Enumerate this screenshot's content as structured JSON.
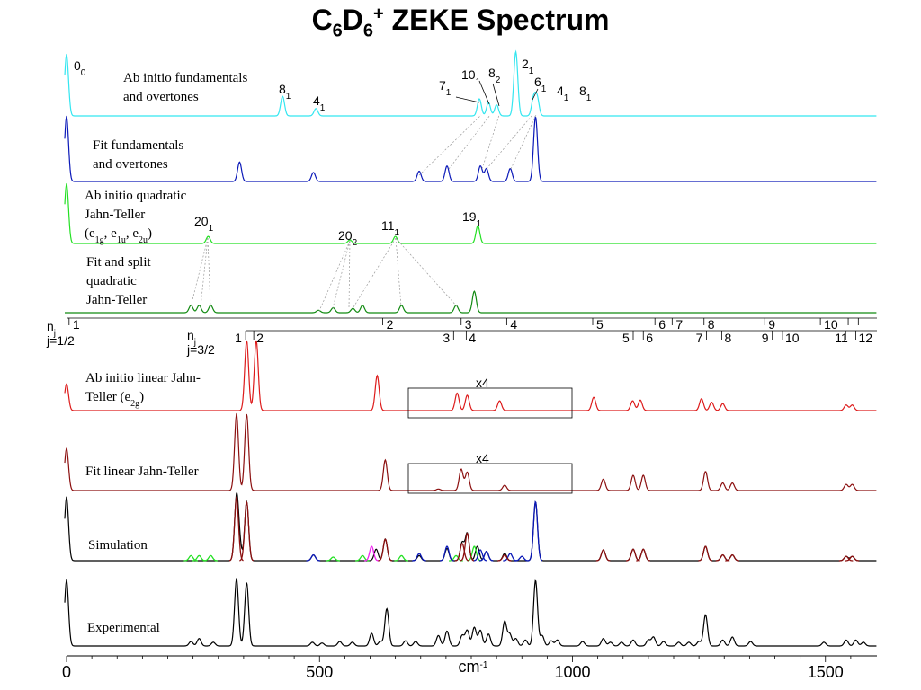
{
  "title": {
    "main": "C",
    "sub1": "6",
    "mid": "D",
    "sub2": "6",
    "sup": "+",
    "rest": " ZEKE Spectrum"
  },
  "colors": {
    "cyan": "#33e6f0",
    "blue": "#0a18b8",
    "green": "#23e023",
    "darkgreen": "#118a11",
    "red": "#dd1a1a",
    "darkred": "#8b0f0f",
    "black": "#000000",
    "magenta": "#ee22ee"
  },
  "chart_data": {
    "type": "line",
    "xlabel": "cm",
    "xlabel_sup": "-1",
    "xlim": [
      0,
      1600
    ],
    "xticks": [
      0,
      500,
      1000,
      1500
    ],
    "xtick_labels": [
      "0",
      "500",
      "1000",
      "1500"
    ],
    "series": [
      {
        "name": "Ab initio fundamentals and overtones",
        "label_lines": [
          "Ab initio fundamentals",
          "and overtones"
        ],
        "color": "#33e6f0",
        "peaks": [
          [
            0,
            1.0
          ],
          [
            427,
            0.32
          ],
          [
            493,
            0.12
          ],
          [
            816,
            0.28
          ],
          [
            834,
            0.22
          ],
          [
            850,
            0.18
          ],
          [
            888,
            1.05
          ],
          [
            923,
            0.28
          ],
          [
            930,
            0.3
          ]
        ],
        "annotations": [
          {
            "text": "0",
            "sub": "0",
            "x": 0
          },
          {
            "text": "8",
            "sub": "1",
            "x": 427
          },
          {
            "text": "4",
            "sub": "1",
            "x": 493
          },
          {
            "text": "7",
            "sub": "1",
            "x": 816
          },
          {
            "text": "10",
            "sub": "1",
            "x": 834
          },
          {
            "text": "8",
            "sub": "2",
            "x": 850
          },
          {
            "text": "2",
            "sub": "1",
            "x": 888
          },
          {
            "text": "6",
            "sub": "1",
            "x": 923
          },
          {
            "text": "4",
            "sub": "1",
            "x": 958
          },
          {
            "text": "8",
            "sub": "1",
            "x": 986
          }
        ]
      },
      {
        "name": "Fit fundamentals and overtones",
        "label_lines": [
          "Fit fundamentals",
          "and overtones"
        ],
        "color": "#0a18b8",
        "peaks": [
          [
            0,
            1.0
          ],
          [
            342,
            0.3
          ],
          [
            488,
            0.14
          ],
          [
            697,
            0.16
          ],
          [
            752,
            0.24
          ],
          [
            818,
            0.24
          ],
          [
            830,
            0.2
          ],
          [
            877,
            0.2
          ],
          [
            927,
            1.0
          ]
        ]
      },
      {
        "name": "Ab initio quadratic Jahn-Teller",
        "label_lines": [
          "Ab initio quadratic",
          "Jahn-Teller",
          "(e1g, e1u, e2u)"
        ],
        "color": "#23e023",
        "peaks": [
          [
            0,
            1.0
          ],
          [
            280,
            0.12
          ],
          [
            560,
            0.06
          ],
          [
            650,
            0.12
          ],
          [
            813,
            0.3
          ]
        ],
        "annotations": [
          {
            "text": "20",
            "sub": "1",
            "x": 280
          },
          {
            "text": "20",
            "sub": "2",
            "x": 560
          },
          {
            "text": "11",
            "sub": "1",
            "x": 650
          },
          {
            "text": "19",
            "sub": "1",
            "x": 813
          }
        ]
      },
      {
        "name": "Fit and split quadratic Jahn-Teller",
        "label_lines": [
          "Fit and split",
          "quadratic",
          "Jahn-Teller"
        ],
        "color": "#118a11",
        "peaks": [
          [
            246,
            0.12
          ],
          [
            262,
            0.12
          ],
          [
            285,
            0.12
          ],
          [
            498,
            0.04
          ],
          [
            527,
            0.08
          ],
          [
            566,
            0.07
          ],
          [
            585,
            0.12
          ],
          [
            662,
            0.12
          ],
          [
            770,
            0.12
          ],
          [
            806,
            0.35
          ]
        ]
      },
      {
        "name": "Ab initio linear Jahn-Teller (e2g)",
        "label_lines": [
          "Ab initio linear Jahn-",
          "Teller (e2g)"
        ],
        "color": "#dd1a1a",
        "peaks": [
          [
            0,
            0.38
          ],
          [
            356,
            1.0
          ],
          [
            375,
            1.0
          ],
          [
            614,
            0.5
          ],
          [
            772,
            0.25
          ],
          [
            792,
            0.22
          ],
          [
            856,
            0.14
          ],
          [
            1042,
            0.19
          ],
          [
            1119,
            0.14
          ],
          [
            1134,
            0.15
          ],
          [
            1255,
            0.17
          ],
          [
            1275,
            0.12
          ],
          [
            1297,
            0.1
          ],
          [
            1541,
            0.08
          ],
          [
            1553,
            0.08
          ]
        ],
        "annotations": [
          {
            "text": "x4",
            "x": 822
          }
        ]
      },
      {
        "name": "Fit linear Jahn-Teller",
        "label_lines": [
          "Fit linear Jahn-Teller"
        ],
        "color": "#8b0f0f",
        "peaks": [
          [
            0,
            0.55
          ],
          [
            336,
            1.0
          ],
          [
            356,
            1.0
          ],
          [
            630,
            0.4
          ],
          [
            735,
            0.02
          ],
          [
            780,
            0.28
          ],
          [
            792,
            0.24
          ],
          [
            866,
            0.07
          ],
          [
            1061,
            0.15
          ],
          [
            1120,
            0.2
          ],
          [
            1140,
            0.2
          ],
          [
            1263,
            0.25
          ],
          [
            1297,
            0.1
          ],
          [
            1316,
            0.1
          ],
          [
            1541,
            0.08
          ],
          [
            1553,
            0.08
          ]
        ],
        "annotations": [
          {
            "text": "x4",
            "x": 822
          }
        ]
      },
      {
        "name": "Simulation",
        "label_lines": [
          "Simulation"
        ],
        "color": "#000000",
        "peaks": [
          [
            0,
            0.88
          ],
          [
            336,
            0.88
          ],
          [
            342,
            0.2
          ],
          [
            356,
            0.82
          ],
          [
            488,
            0.08
          ],
          [
            612,
            0.16
          ],
          [
            630,
            0.3
          ],
          [
            697,
            0.07
          ],
          [
            752,
            0.17
          ],
          [
            782,
            0.25
          ],
          [
            792,
            0.38
          ],
          [
            812,
            0.2
          ],
          [
            830,
            0.13
          ],
          [
            866,
            0.1
          ],
          [
            927,
            0.82
          ],
          [
            1061,
            0.15
          ],
          [
            1120,
            0.16
          ],
          [
            1140,
            0.16
          ],
          [
            1263,
            0.2
          ],
          [
            1297,
            0.08
          ],
          [
            1316,
            0.08
          ],
          [
            1541,
            0.06
          ],
          [
            1553,
            0.06
          ]
        ],
        "extra": [
          {
            "color": "#23e023",
            "peaks": [
              [
                246,
                0.07
              ],
              [
                262,
                0.07
              ],
              [
                285,
                0.07
              ],
              [
                527,
                0.05
              ],
              [
                585,
                0.07
              ],
              [
                662,
                0.07
              ],
              [
                770,
                0.07
              ],
              [
                806,
                0.2
              ]
            ]
          },
          {
            "color": "#ee22ee",
            "peaks": [
              [
                603,
                0.2
              ]
            ]
          },
          {
            "color": "#0a18b8",
            "peaks": [
              [
                488,
                0.08
              ],
              [
                697,
                0.1
              ],
              [
                752,
                0.2
              ],
              [
                818,
                0.15
              ],
              [
                830,
                0.13
              ],
              [
                877,
                0.1
              ],
              [
                900,
                0.06
              ],
              [
                927,
                0.82
              ]
            ]
          },
          {
            "color": "#8b0f0f",
            "peaks": [
              [
                336,
                0.88
              ],
              [
                356,
                0.82
              ],
              [
                630,
                0.3
              ],
              [
                782,
                0.24
              ],
              [
                792,
                0.38
              ],
              [
                866,
                0.08
              ],
              [
                1061,
                0.15
              ],
              [
                1120,
                0.16
              ],
              [
                1140,
                0.16
              ],
              [
                1263,
                0.2
              ],
              [
                1297,
                0.08
              ],
              [
                1316,
                0.08
              ],
              [
                1541,
                0.06
              ],
              [
                1553,
                0.06
              ]
            ]
          }
        ]
      },
      {
        "name": "Experimental",
        "label_lines": [
          "Experimental"
        ],
        "color": "#000000",
        "peaks": [
          [
            0,
            0.88
          ],
          [
            246,
            0.06
          ],
          [
            262,
            0.1
          ],
          [
            290,
            0.05
          ],
          [
            336,
            0.9
          ],
          [
            356,
            0.85
          ],
          [
            486,
            0.05
          ],
          [
            505,
            0.04
          ],
          [
            540,
            0.06
          ],
          [
            565,
            0.05
          ],
          [
            603,
            0.17
          ],
          [
            620,
            0.06
          ],
          [
            633,
            0.5
          ],
          [
            670,
            0.07
          ],
          [
            690,
            0.06
          ],
          [
            735,
            0.14
          ],
          [
            752,
            0.2
          ],
          [
            782,
            0.14
          ],
          [
            792,
            0.21
          ],
          [
            806,
            0.25
          ],
          [
            818,
            0.21
          ],
          [
            834,
            0.16
          ],
          [
            866,
            0.33
          ],
          [
            876,
            0.16
          ],
          [
            888,
            0.1
          ],
          [
            907,
            0.08
          ],
          [
            927,
            0.88
          ],
          [
            940,
            0.14
          ],
          [
            958,
            0.07
          ],
          [
            970,
            0.08
          ],
          [
            1020,
            0.06
          ],
          [
            1061,
            0.1
          ],
          [
            1075,
            0.05
          ],
          [
            1097,
            0.05
          ],
          [
            1120,
            0.08
          ],
          [
            1150,
            0.08
          ],
          [
            1160,
            0.12
          ],
          [
            1180,
            0.06
          ],
          [
            1210,
            0.05
          ],
          [
            1230,
            0.05
          ],
          [
            1250,
            0.06
          ],
          [
            1263,
            0.42
          ],
          [
            1297,
            0.08
          ],
          [
            1316,
            0.12
          ],
          [
            1352,
            0.06
          ],
          [
            1497,
            0.05
          ],
          [
            1541,
            0.08
          ],
          [
            1560,
            0.08
          ],
          [
            1575,
            0.05
          ]
        ]
      }
    ],
    "nj_label": "n",
    "nj_sub": "j",
    "j12_label": "j=1/2",
    "j32_label": "j=3/2",
    "nj_upper": [
      {
        "n": "1",
        "x": 5
      },
      {
        "n": "2",
        "x": 625
      },
      {
        "n": "3",
        "x": 780
      },
      {
        "n": "4",
        "x": 870
      },
      {
        "n": "5",
        "x": 1040
      },
      {
        "n": "6",
        "x": 1163
      },
      {
        "n": "7",
        "x": 1197
      },
      {
        "n": "8",
        "x": 1260
      },
      {
        "n": "9",
        "x": 1380
      },
      {
        "n": "10",
        "x": 1490
      },
      {
        "n": "",
        "x": 1545
      },
      {
        "n": "",
        "x": 1565
      }
    ],
    "nj_lower": [
      {
        "n": "1",
        "x": 354
      },
      {
        "n": "2",
        "x": 370
      },
      {
        "n": "3",
        "x": 765
      },
      {
        "n": "4",
        "x": 790
      },
      {
        "n": "5",
        "x": 1120
      },
      {
        "n": "6",
        "x": 1140
      },
      {
        "n": "7",
        "x": 1265
      },
      {
        "n": "8",
        "x": 1295
      },
      {
        "n": "9",
        "x": 1395
      },
      {
        "n": "10",
        "x": 1415
      },
      {
        "n": "11",
        "x": 1540
      },
      {
        "n": "12",
        "x": 1560
      }
    ]
  }
}
